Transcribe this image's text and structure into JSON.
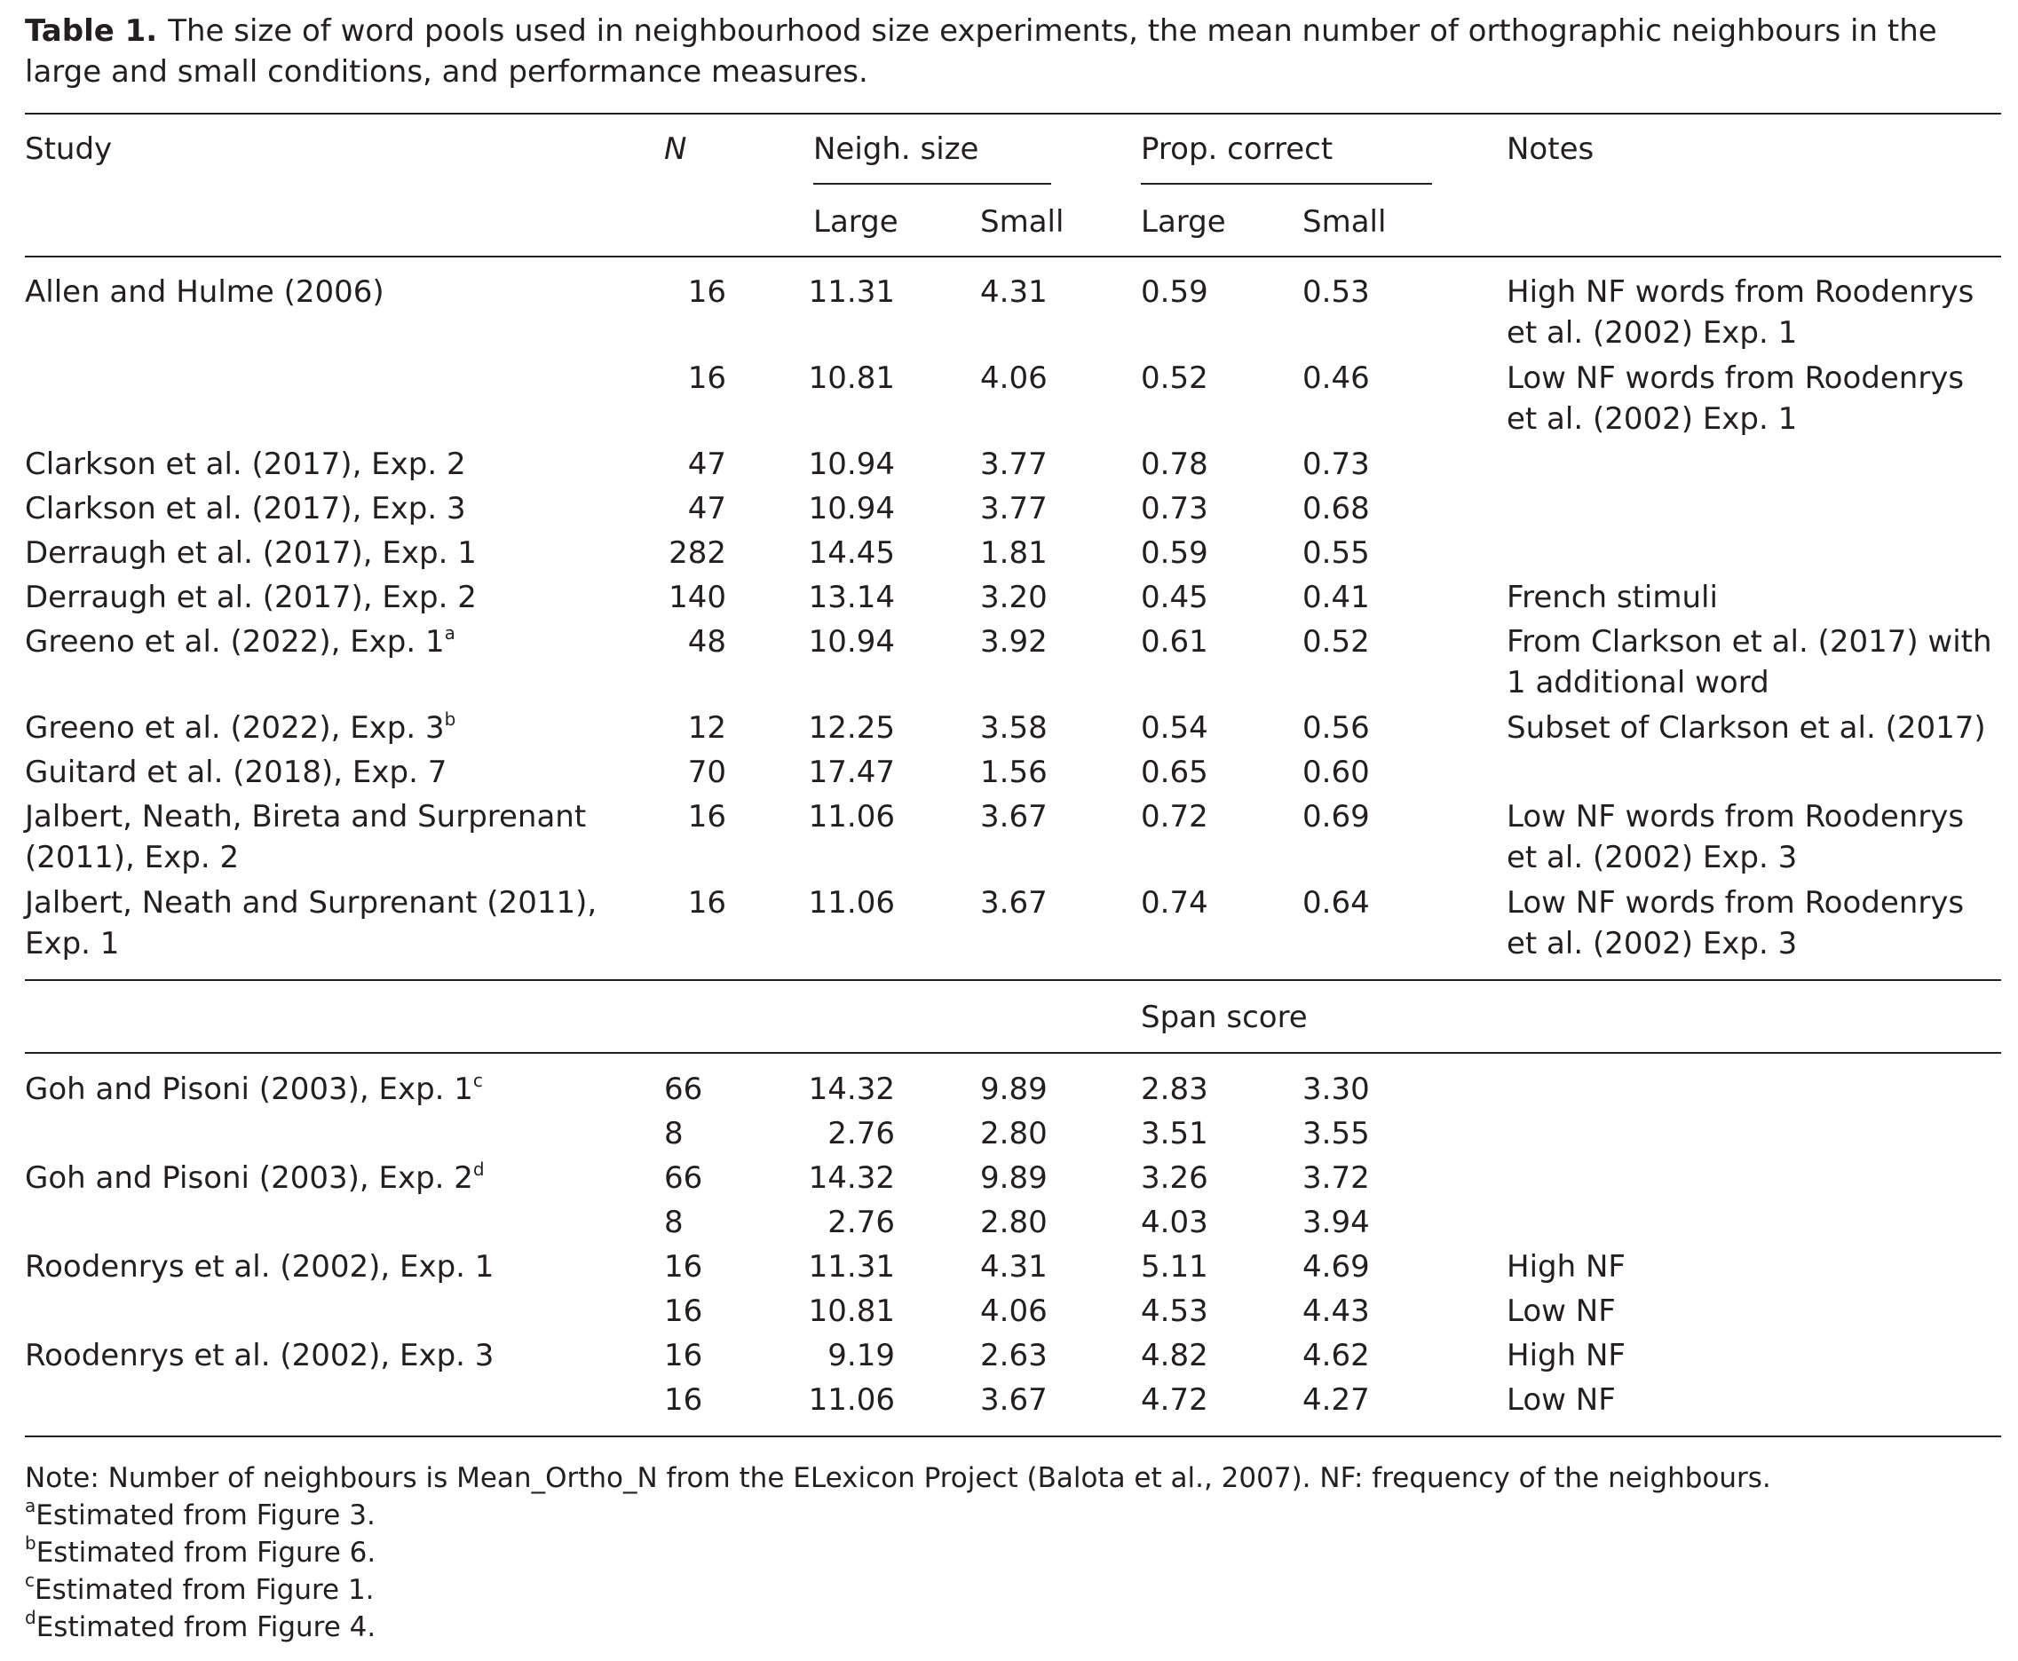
{
  "caption": {
    "label": "Table 1.",
    "text": "The size of word pools used in neighbourhood size experiments, the mean number of orthographic neighbours in the large and small conditions, and performance measures."
  },
  "headers": {
    "study": "Study",
    "n": "N",
    "neigh_size": "Neigh. size",
    "prop_correct": "Prop. correct",
    "notes": "Notes",
    "large": "Large",
    "small": "Small",
    "span_score": "Span score"
  },
  "rows": [
    {
      "study": "Allen and Hulme (2006)",
      "sup": "",
      "n": "16",
      "nl": "11.31",
      "ns": "4.31",
      "pl": "0.59",
      "ps": "0.53",
      "notes": "High NF words from Roodenrys et al. (2002) Exp. 1"
    },
    {
      "study": "",
      "sup": "",
      "n": "16",
      "nl": "10.81",
      "ns": "4.06",
      "pl": "0.52",
      "ps": "0.46",
      "notes": "Low NF words from Roodenrys et al. (2002) Exp. 1"
    },
    {
      "study": "Clarkson et al. (2017), Exp. 2",
      "sup": "",
      "n": "47",
      "nl": "10.94",
      "ns": "3.77",
      "pl": "0.78",
      "ps": "0.73",
      "notes": ""
    },
    {
      "study": "Clarkson et al. (2017), Exp. 3",
      "sup": "",
      "n": "47",
      "nl": "10.94",
      "ns": "3.77",
      "pl": "0.73",
      "ps": "0.68",
      "notes": ""
    },
    {
      "study": "Derraugh et al. (2017), Exp. 1",
      "sup": "",
      "n": "282",
      "nl": "14.45",
      "ns": "1.81",
      "pl": "0.59",
      "ps": "0.55",
      "notes": ""
    },
    {
      "study": "Derraugh et al. (2017), Exp. 2",
      "sup": "",
      "n": "140",
      "nl": "13.14",
      "ns": "3.20",
      "pl": "0.45",
      "ps": "0.41",
      "notes": "French stimuli"
    },
    {
      "study": "Greeno et al. (2022), Exp. 1",
      "sup": "a",
      "n": "48",
      "nl": "10.94",
      "ns": "3.92",
      "pl": "0.61",
      "ps": "0.52",
      "notes": "From Clarkson et al. (2017) with 1 additional word"
    },
    {
      "study": "Greeno et al. (2022), Exp. 3",
      "sup": "b",
      "n": "12",
      "nl": "12.25",
      "ns": "3.58",
      "pl": "0.54",
      "ps": "0.56",
      "notes": "Subset of Clarkson et al. (2017)"
    },
    {
      "study": "Guitard et al. (2018), Exp. 7",
      "sup": "",
      "n": "70",
      "nl": "17.47",
      "ns": "1.56",
      "pl": "0.65",
      "ps": "0.60",
      "notes": ""
    },
    {
      "study": "Jalbert, Neath, Bireta and Surprenant (2011), Exp. 2",
      "sup": "",
      "n": "16",
      "nl": "11.06",
      "ns": "3.67",
      "pl": "0.72",
      "ps": "0.69",
      "notes": "Low NF words from Roodenrys et al. (2002) Exp. 3"
    },
    {
      "study": "Jalbert, Neath and Surprenant (2011), Exp. 1",
      "sup": "",
      "n": "16",
      "nl": "11.06",
      "ns": "3.67",
      "pl": "0.74",
      "ps": "0.64",
      "notes": "Low NF words from Roodenrys et al. (2002) Exp. 3"
    }
  ],
  "span_rows": [
    {
      "study": "Goh and Pisoni (2003), Exp. 1",
      "sup": "c",
      "n": "66",
      "nl": "14.32",
      "ns": "9.89",
      "pl": "2.83",
      "ps": "3.30",
      "notes": ""
    },
    {
      "study": "",
      "sup": "",
      "n": "8",
      "nl": "2.76",
      "ns": "2.80",
      "pl": "3.51",
      "ps": "3.55",
      "notes": ""
    },
    {
      "study": "Goh and Pisoni (2003), Exp. 2",
      "sup": "d",
      "n": "66",
      "nl": "14.32",
      "ns": "9.89",
      "pl": "3.26",
      "ps": "3.72",
      "notes": ""
    },
    {
      "study": "",
      "sup": "",
      "n": "8",
      "nl": "2.76",
      "ns": "2.80",
      "pl": "4.03",
      "ps": "3.94",
      "notes": ""
    },
    {
      "study": "Roodenrys et al. (2002), Exp. 1",
      "sup": "",
      "n": "16",
      "nl": "11.31",
      "ns": "4.31",
      "pl": "5.11",
      "ps": "4.69",
      "notes": "High NF"
    },
    {
      "study": "",
      "sup": "",
      "n": "16",
      "nl": "10.81",
      "ns": "4.06",
      "pl": "4.53",
      "ps": "4.43",
      "notes": "Low NF"
    },
    {
      "study": "Roodenrys et al. (2002), Exp. 3",
      "sup": "",
      "n": "16",
      "nl": "9.19",
      "ns": "2.63",
      "pl": "4.82",
      "ps": "4.62",
      "notes": "High NF"
    },
    {
      "study": "",
      "sup": "",
      "n": "16",
      "nl": "11.06",
      "ns": "3.67",
      "pl": "4.72",
      "ps": "4.27",
      "notes": "Low NF"
    }
  ],
  "footnotes": {
    "note": "Note: Number of neighbours is Mean_Ortho_N from the ELexicon Project (Balota et al., 2007). NF: frequency of the neighbours.",
    "a": {
      "mark": "a",
      "text": "Estimated from Figure 3."
    },
    "b": {
      "mark": "b",
      "text": "Estimated from Figure 6."
    },
    "c": {
      "mark": "c",
      "text": "Estimated from Figure 1."
    },
    "d": {
      "mark": "d",
      "text": "Estimated from Figure 4."
    }
  }
}
